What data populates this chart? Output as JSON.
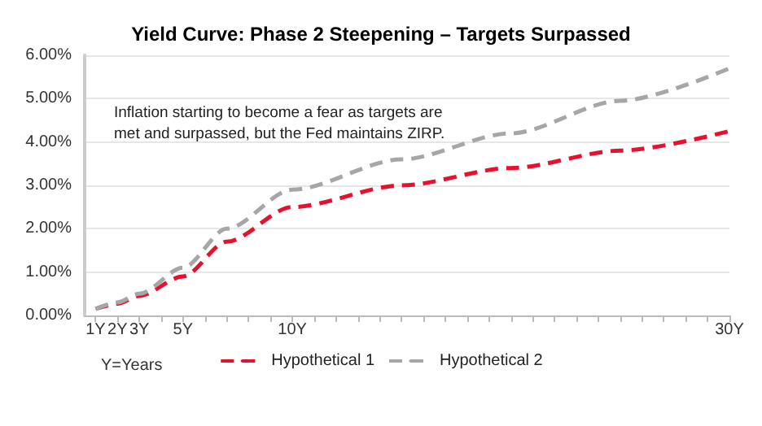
{
  "chart_data": {
    "type": "line",
    "title": "Yield Curve: Phase 2 Steepening – Targets Surpassed",
    "xlabel": "Y=Years",
    "annotations": [
      "Inflation starting to become a fear as targets are\nmet and surpassed, but the Fed maintains ZIRP."
    ],
    "x": [
      1,
      2,
      3,
      5,
      7,
      10,
      15,
      20,
      25,
      30
    ],
    "series": [
      {
        "name": "Hypothetical 1",
        "color": "#e8112d",
        "line_style": "dashed",
        "values": [
          0.15,
          0.27,
          0.45,
          0.9,
          1.7,
          2.5,
          3.0,
          3.4,
          3.8,
          4.25
        ]
      },
      {
        "name": "Hypothetical 2",
        "color": "#a6a6a6",
        "line_style": "dashed",
        "values": [
          0.15,
          0.3,
          0.5,
          1.1,
          2.0,
          2.9,
          3.6,
          4.2,
          4.95,
          5.7
        ]
      }
    ],
    "xlim": [
      0.5,
      30
    ],
    "xticks": [
      {
        "value": 1,
        "label": "1Y"
      },
      {
        "value": 2,
        "label": "2Y"
      },
      {
        "value": 3,
        "label": "3Y"
      },
      {
        "value": 4,
        "label": null
      },
      {
        "value": 5,
        "label": "5Y"
      },
      {
        "value": 6,
        "label": null
      },
      {
        "value": 7,
        "label": null
      },
      {
        "value": 8,
        "label": null
      },
      {
        "value": 9,
        "label": null
      },
      {
        "value": 10,
        "label": "10Y"
      },
      {
        "value": 11,
        "label": null
      },
      {
        "value": 12,
        "label": null
      },
      {
        "value": 13,
        "label": null
      },
      {
        "value": 14,
        "label": null
      },
      {
        "value": 15,
        "label": null
      },
      {
        "value": 16,
        "label": null
      },
      {
        "value": 17,
        "label": null
      },
      {
        "value": 18,
        "label": null
      },
      {
        "value": 19,
        "label": null
      },
      {
        "value": 20,
        "label": null
      },
      {
        "value": 21,
        "label": null
      },
      {
        "value": 22,
        "label": null
      },
      {
        "value": 23,
        "label": null
      },
      {
        "value": 24,
        "label": null
      },
      {
        "value": 25,
        "label": null
      },
      {
        "value": 26,
        "label": null
      },
      {
        "value": 27,
        "label": null
      },
      {
        "value": 28,
        "label": null
      },
      {
        "value": 29,
        "label": null
      },
      {
        "value": 30,
        "label": "30Y"
      }
    ],
    "ylim": [
      0,
      6
    ],
    "yticks": [
      {
        "value": 0,
        "label": "0.00%"
      },
      {
        "value": 1,
        "label": "1.00%"
      },
      {
        "value": 2,
        "label": "2.00%"
      },
      {
        "value": 3,
        "label": "3.00%"
      },
      {
        "value": 4,
        "label": "4.00%"
      },
      {
        "value": 5,
        "label": "5.00%"
      },
      {
        "value": 6,
        "label": "6.00%"
      }
    ],
    "grid": "y",
    "legend": "bottom",
    "marker": "none"
  }
}
